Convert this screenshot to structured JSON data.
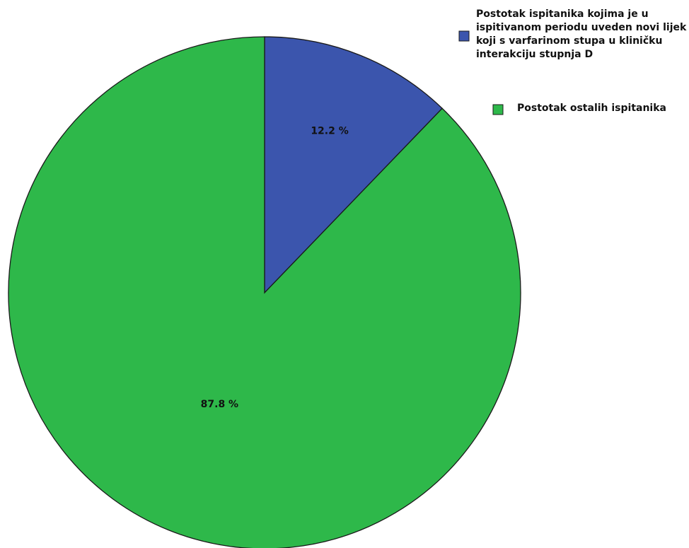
{
  "chart_data": {
    "type": "pie",
    "categories": [
      "Postotak ispitanika kojima je u ispitivanom periodu uveden novi lijek koji s varfarinom stupa u kliničku interakciju stupnja D",
      "Postotak ostalih ispitanika"
    ],
    "values": [
      12.2,
      87.8
    ],
    "data_labels": [
      "12.2 %",
      "87.8 %"
    ],
    "colors": [
      "#3b55ad",
      "#2eb84a"
    ],
    "start_angle_deg": 0,
    "direction": "clockwise",
    "legend": {
      "placement": "top-right",
      "items": [
        {
          "lines": [
            "Postotak ispitanika kojima je u",
            "ispitivanom periodu uveden novi lijek",
            "koji s varfarinom stupa u kliničku",
            "interakciju stupnja D"
          ],
          "color": "#3b55ad"
        },
        {
          "lines": [
            "Postotak ostalih ispitanika"
          ],
          "color": "#2eb84a"
        }
      ]
    },
    "title": "",
    "grid": false
  }
}
